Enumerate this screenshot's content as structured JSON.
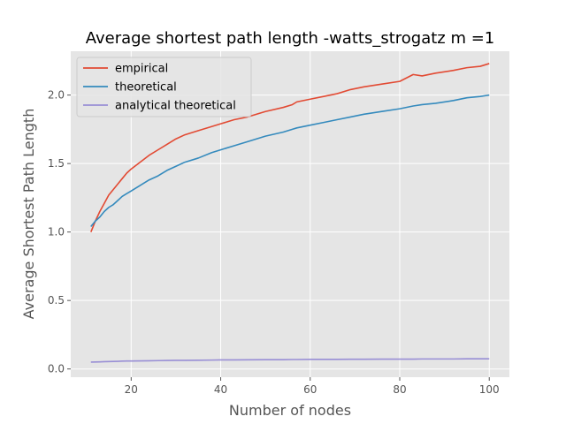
{
  "chart_data": {
    "type": "line",
    "title": "Average shortest path length -watts_strogatz m =1",
    "xlabel": "Number of nodes",
    "ylabel": "Average Shortest Path Length",
    "xlim": [
      6.5,
      104.5
    ],
    "ylim": [
      -0.06,
      2.32
    ],
    "xticks": [
      20,
      40,
      60,
      80,
      100
    ],
    "xtick_labels": [
      "20",
      "40",
      "60",
      "80",
      "100"
    ],
    "yticks": [
      0.0,
      0.5,
      1.0,
      1.5,
      2.0
    ],
    "ytick_labels": [
      "0.0",
      "0.5",
      "1.0",
      "1.5",
      "2.0"
    ],
    "grid": true,
    "legend_position": "top-left",
    "x": [
      11,
      12,
      13,
      14,
      15,
      16,
      17,
      18,
      19,
      20,
      22,
      24,
      26,
      28,
      30,
      32,
      35,
      38,
      40,
      43,
      46,
      50,
      54,
      56,
      57,
      60,
      63,
      66,
      69,
      72,
      76,
      80,
      83,
      85,
      88,
      92,
      95,
      98,
      100
    ],
    "series": [
      {
        "name": "empirical",
        "color": "#e24a33",
        "values": [
          1.0,
          1.08,
          1.15,
          1.21,
          1.27,
          1.31,
          1.35,
          1.39,
          1.43,
          1.46,
          1.51,
          1.56,
          1.6,
          1.64,
          1.68,
          1.71,
          1.74,
          1.77,
          1.79,
          1.82,
          1.84,
          1.88,
          1.91,
          1.93,
          1.95,
          1.97,
          1.99,
          2.01,
          2.04,
          2.06,
          2.08,
          2.1,
          2.15,
          2.14,
          2.16,
          2.18,
          2.2,
          2.21,
          2.23
        ]
      },
      {
        "name": "theoretical",
        "color": "#348abd",
        "values": [
          1.04,
          1.08,
          1.11,
          1.15,
          1.18,
          1.2,
          1.23,
          1.26,
          1.28,
          1.3,
          1.34,
          1.38,
          1.41,
          1.45,
          1.48,
          1.51,
          1.54,
          1.58,
          1.6,
          1.63,
          1.66,
          1.7,
          1.73,
          1.75,
          1.76,
          1.78,
          1.8,
          1.82,
          1.84,
          1.86,
          1.88,
          1.9,
          1.92,
          1.93,
          1.94,
          1.96,
          1.98,
          1.99,
          2.0
        ]
      },
      {
        "name": "analytical theoretical",
        "color": "#988ed5",
        "values": [
          0.05,
          0.051,
          0.052,
          0.053,
          0.054,
          0.055,
          0.056,
          0.057,
          0.058,
          0.058,
          0.059,
          0.06,
          0.061,
          0.062,
          0.063,
          0.063,
          0.064,
          0.065,
          0.066,
          0.066,
          0.067,
          0.068,
          0.068,
          0.069,
          0.069,
          0.07,
          0.07,
          0.07,
          0.071,
          0.071,
          0.072,
          0.072,
          0.072,
          0.073,
          0.073,
          0.073,
          0.074,
          0.074,
          0.074
        ]
      }
    ]
  }
}
